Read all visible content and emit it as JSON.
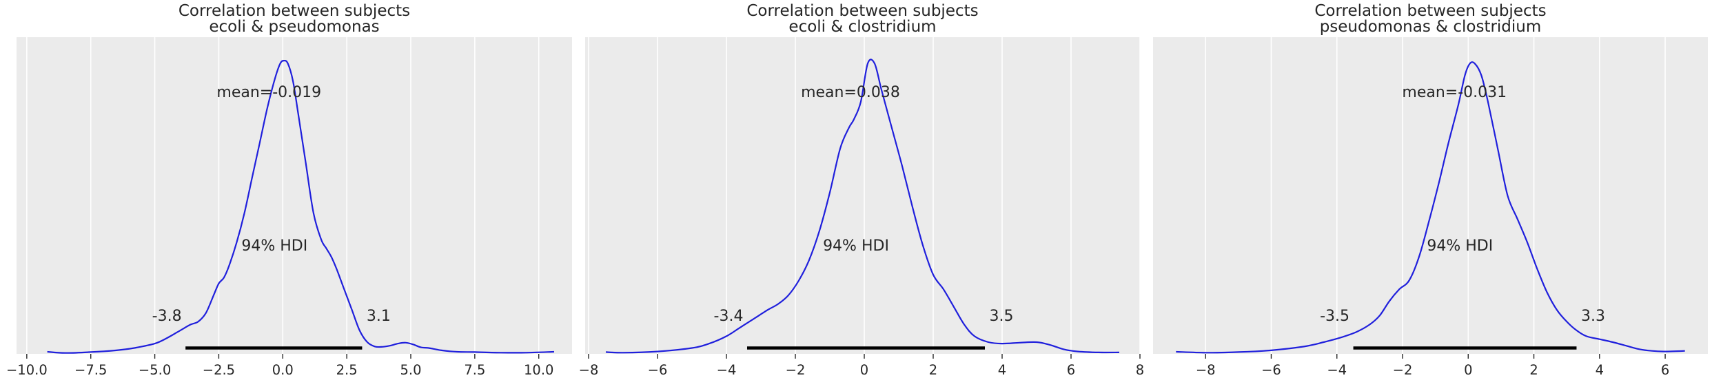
{
  "figure": {
    "background": "#ffffff",
    "panel_background": "#ebebeb",
    "grid_color": "#ffffff",
    "curve_color": "#1f1fdc",
    "hdi_color": "#000000"
  },
  "chart_data": [
    {
      "type": "line",
      "title": "Correlation between subjects\necoli & pseudomonas",
      "title_lines": [
        "Correlation between subjects",
        "ecoli & pseudomonas"
      ],
      "xlim": [
        -10.4,
        11.3
      ],
      "ylim": [
        0,
        1.08
      ],
      "xticks": [
        -10.0,
        -7.5,
        -5.0,
        -2.5,
        0.0,
        2.5,
        5.0,
        7.5,
        10.0
      ],
      "xtick_labels": [
        "−10.0",
        "−7.5",
        "−5.0",
        "−2.5",
        "0.0",
        "2.5",
        "5.0",
        "7.5",
        "10.0"
      ],
      "grid": "vertical",
      "mean_label": "mean=-0.019",
      "hdi_label": "94% HDI",
      "hdi": [
        -3.8,
        3.1
      ],
      "hdi_low_label": "-3.8",
      "hdi_high_label": "3.1",
      "series": [
        {
          "x": [
            -9.2,
            -8.5,
            -7.5,
            -6.5,
            -5.8,
            -5.0,
            -4.5,
            -4.0,
            -3.6,
            -3.3,
            -3.0,
            -2.7,
            -2.5,
            -2.3,
            -2.1,
            -1.8,
            -1.5,
            -1.2,
            -0.9,
            -0.6,
            -0.3,
            -0.1,
            0.05,
            0.2,
            0.4,
            0.6,
            0.9,
            1.2,
            1.5,
            1.7,
            1.9,
            2.1,
            2.4,
            2.7,
            3.0,
            3.3,
            3.6,
            3.9,
            4.2,
            4.5,
            4.8,
            5.1,
            5.4,
            5.7,
            6.2,
            6.8,
            7.5,
            8.5,
            9.5,
            10.6
          ],
          "y": [
            0.007,
            0.003,
            0.006,
            0.012,
            0.02,
            0.035,
            0.055,
            0.08,
            0.1,
            0.11,
            0.14,
            0.2,
            0.24,
            0.26,
            0.3,
            0.38,
            0.48,
            0.6,
            0.72,
            0.84,
            0.94,
            0.99,
            1.0,
            0.99,
            0.93,
            0.82,
            0.65,
            0.48,
            0.39,
            0.36,
            0.33,
            0.29,
            0.22,
            0.15,
            0.08,
            0.04,
            0.025,
            0.024,
            0.028,
            0.035,
            0.038,
            0.032,
            0.022,
            0.02,
            0.012,
            0.007,
            0.006,
            0.004,
            0.004,
            0.007
          ]
        }
      ]
    },
    {
      "type": "line",
      "title": "Correlation between subjects\necoli & clostridium",
      "title_lines": [
        "Correlation between subjects",
        "ecoli & clostridium"
      ],
      "xlim": [
        -8.1,
        8.0
      ],
      "ylim": [
        0,
        1.08
      ],
      "xticks": [
        -8,
        -6,
        -4,
        -2,
        0,
        2,
        4,
        6,
        8
      ],
      "xtick_labels": [
        "−8",
        "−6",
        "−4",
        "−2",
        "0",
        "2",
        "4",
        "6",
        "8"
      ],
      "grid": "vertical",
      "mean_label": "mean=0.038",
      "hdi_label": "94% HDI",
      "hdi": [
        -3.4,
        3.5
      ],
      "hdi_low_label": "-3.4",
      "hdi_high_label": "3.5",
      "series": [
        {
          "x": [
            -7.5,
            -7.0,
            -6.0,
            -5.0,
            -4.5,
            -4.0,
            -3.6,
            -3.2,
            -2.8,
            -2.5,
            -2.2,
            -1.9,
            -1.6,
            -1.3,
            -1.0,
            -0.7,
            -0.45,
            -0.3,
            -0.1,
            0.1,
            0.3,
            0.5,
            0.8,
            1.1,
            1.4,
            1.7,
            2.0,
            2.3,
            2.6,
            2.9,
            3.2,
            3.6,
            4.0,
            4.5,
            5.0,
            5.4,
            5.8,
            6.2,
            6.8,
            7.4
          ],
          "y": [
            0.006,
            0.004,
            0.008,
            0.02,
            0.035,
            0.06,
            0.09,
            0.12,
            0.15,
            0.17,
            0.2,
            0.25,
            0.32,
            0.42,
            0.55,
            0.7,
            0.77,
            0.8,
            0.86,
            0.99,
            0.99,
            0.9,
            0.77,
            0.64,
            0.5,
            0.37,
            0.27,
            0.22,
            0.16,
            0.1,
            0.06,
            0.04,
            0.035,
            0.038,
            0.04,
            0.03,
            0.015,
            0.008,
            0.005,
            0.005
          ]
        }
      ]
    },
    {
      "type": "line",
      "title": "Correlation between subjects\npseudomonas & clostridium",
      "title_lines": [
        "Correlation between subjects",
        "pseudomonas & clostridium"
      ],
      "xlim": [
        -9.6,
        7.3
      ],
      "ylim": [
        0,
        1.08
      ],
      "xticks": [
        -8,
        -6,
        -4,
        -2,
        0,
        2,
        4,
        6
      ],
      "xtick_labels": [
        "−8",
        "−6",
        "−4",
        "−2",
        "0",
        "2",
        "4",
        "6"
      ],
      "grid": "vertical",
      "mean_label": "mean=-0.031",
      "hdi_label": "94% HDI",
      "hdi": [
        -3.5,
        3.3
      ],
      "hdi_low_label": "-3.5",
      "hdi_high_label": "3.3",
      "series": [
        {
          "x": [
            -8.9,
            -8.0,
            -7.0,
            -6.0,
            -5.0,
            -4.4,
            -3.9,
            -3.4,
            -3.0,
            -2.7,
            -2.4,
            -2.1,
            -1.8,
            -1.5,
            -1.2,
            -0.9,
            -0.6,
            -0.3,
            -0.1,
            0.05,
            0.2,
            0.4,
            0.6,
            0.9,
            1.2,
            1.5,
            1.8,
            2.1,
            2.4,
            2.7,
            3.0,
            3.3,
            3.6,
            4.0,
            4.4,
            4.8,
            5.2,
            5.6,
            6.0,
            6.6
          ],
          "y": [
            0.007,
            0.004,
            0.006,
            0.012,
            0.025,
            0.04,
            0.055,
            0.075,
            0.1,
            0.13,
            0.18,
            0.22,
            0.25,
            0.33,
            0.45,
            0.58,
            0.72,
            0.85,
            0.95,
            0.99,
            0.99,
            0.95,
            0.86,
            0.7,
            0.54,
            0.46,
            0.38,
            0.29,
            0.21,
            0.15,
            0.11,
            0.08,
            0.06,
            0.05,
            0.04,
            0.028,
            0.016,
            0.01,
            0.008,
            0.01
          ]
        }
      ]
    }
  ]
}
